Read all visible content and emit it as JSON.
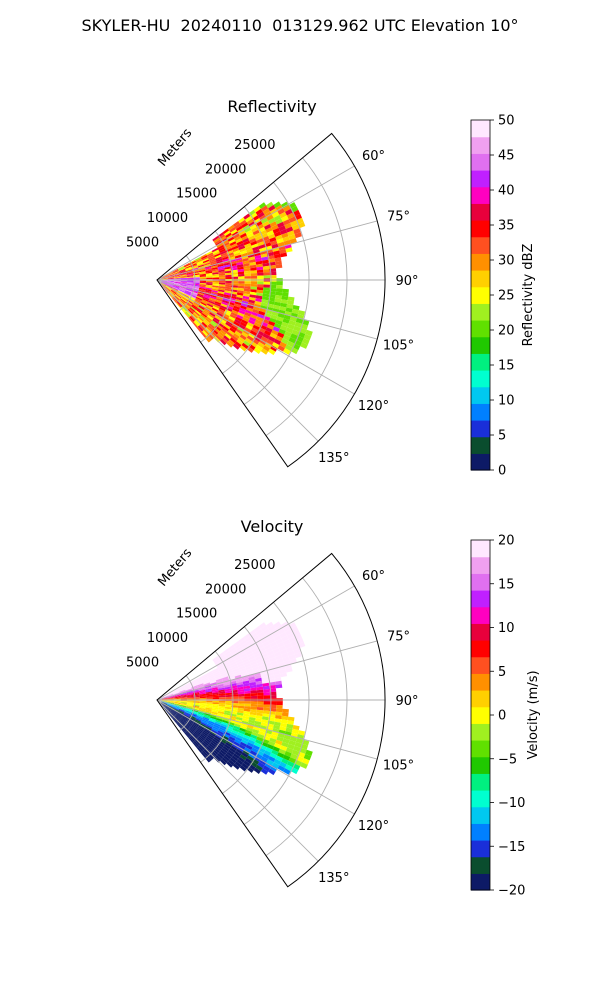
{
  "figure_title": "SKYLER-HU  20240110  013129.962 UTC Elevation 10°",
  "chart_data": [
    {
      "type": "heatmap",
      "subtype": "polar-sector",
      "title": "Reflectivity",
      "radial_label": "Meters",
      "radial_ticks": [
        "5000",
        "10000",
        "15000",
        "20000",
        "25000"
      ],
      "radial_tick_values": [
        5000,
        10000,
        15000,
        20000,
        25000
      ],
      "rlim": [
        0,
        30000
      ],
      "angle_ticks": [
        "60°",
        "75°",
        "90°",
        "105°",
        "120°",
        "135°"
      ],
      "angle_tick_values": [
        60,
        75,
        90,
        105,
        120,
        135
      ],
      "theta_range_deg": [
        50,
        145
      ],
      "grid": true,
      "colorbar": {
        "label": "Reflectivity dBZ",
        "range": [
          0,
          50
        ],
        "ticks": [
          "0",
          "5",
          "10",
          "15",
          "20",
          "25",
          "30",
          "35",
          "40",
          "45",
          "50"
        ],
        "tick_values": [
          0,
          5,
          10,
          15,
          20,
          25,
          30,
          35,
          40,
          45,
          50
        ],
        "colors": [
          "#0d1a66",
          "#0a4d2e",
          "#1a2fd9",
          "#0080ff",
          "#00c8f0",
          "#00ffd0",
          "#00f080",
          "#20c800",
          "#60e000",
          "#a0f020",
          "#ffff00",
          "#ffd000",
          "#ff9000",
          "#ff5020",
          "#ff0000",
          "#e8003c",
          "#ff00c0",
          "#c020ff",
          "#e070f0",
          "#f0a0f0",
          "#ffe8ff"
        ]
      },
      "field_description_values": {
        "mean_dbz_sector_core": 30,
        "max_dbz_near_radar": 45,
        "edge_dbz": 20
      }
    },
    {
      "type": "heatmap",
      "subtype": "polar-sector",
      "title": "Velocity",
      "radial_label": "Meters",
      "radial_ticks": [
        "5000",
        "10000",
        "15000",
        "20000",
        "25000"
      ],
      "radial_tick_values": [
        5000,
        10000,
        15000,
        20000,
        25000
      ],
      "rlim": [
        0,
        30000
      ],
      "angle_ticks": [
        "60°",
        "75°",
        "90°",
        "105°",
        "120°",
        "135°"
      ],
      "angle_tick_values": [
        60,
        75,
        90,
        105,
        120,
        135
      ],
      "theta_range_deg": [
        50,
        145
      ],
      "grid": true,
      "colorbar": {
        "label": "Velocity (m/s)",
        "range": [
          -20,
          20
        ],
        "ticks": [
          "−20",
          "−15",
          "−10",
          "−5",
          "0",
          "5",
          "10",
          "15",
          "20"
        ],
        "tick_values": [
          -20,
          -15,
          -10,
          -5,
          0,
          5,
          10,
          15,
          20
        ],
        "colors": [
          "#0d1a66",
          "#0a4d2e",
          "#1a2fd9",
          "#0080ff",
          "#00c8f0",
          "#00ffd0",
          "#00f080",
          "#20c800",
          "#60e000",
          "#a0f020",
          "#ffff00",
          "#ffd000",
          "#ff9000",
          "#ff5020",
          "#ff0000",
          "#e8003c",
          "#ff00c0",
          "#c020ff",
          "#e070f0",
          "#f0a0f0",
          "#ffe8ff"
        ]
      }
    }
  ]
}
